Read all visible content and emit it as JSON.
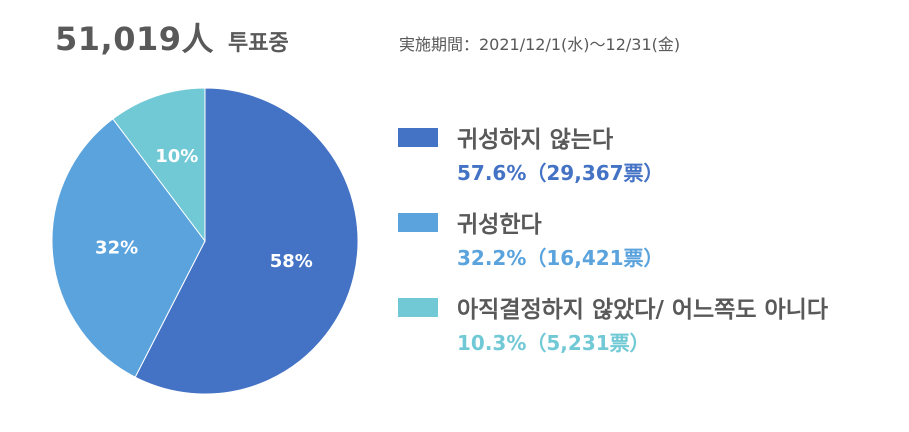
{
  "header": {
    "total": "51,019人",
    "status": "투표중",
    "period": "実施期間：2021/12/1(水)～12/31(金)"
  },
  "chart_data": {
    "type": "pie",
    "categories": [
      "귀성하지 않는다",
      "귀성한다",
      "아직결정하지 않았다/ 어느쪽도 아니다"
    ],
    "values": [
      57.6,
      32.2,
      10.3
    ],
    "votes": [
      29367,
      16421,
      5231
    ],
    "slice_labels": [
      "58%",
      "32%",
      "10%"
    ],
    "colors": [
      "#4472c4",
      "#5ba3dd",
      "#72c9d6"
    ],
    "value_colors": [
      "#4472c4",
      "#5ba3dd",
      "#72c9d6"
    ],
    "legend_values": [
      "57.6%（29,367票）",
      "32.2%（16,421票）",
      "10.3%（5,231票）"
    ],
    "legend_position": "right"
  }
}
